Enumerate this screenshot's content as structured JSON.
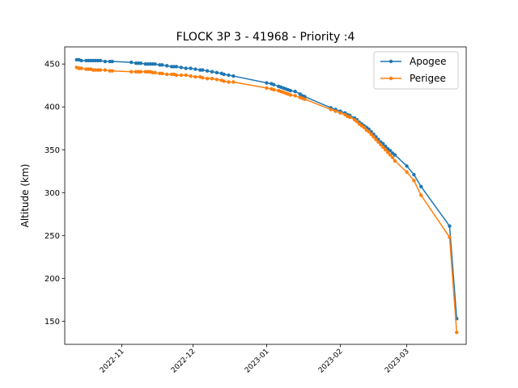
{
  "chart_data": {
    "type": "line",
    "title": "FLOCK 3P 3 - 41968 - Priority :4",
    "xlabel": "",
    "ylabel": "Altitude (km)",
    "x_type": "date",
    "xlim": [
      "2022-10-08",
      "2023-03-26"
    ],
    "ylim": [
      123,
      470
    ],
    "x_ticks": [
      "2022-11-01",
      "2022-12-01",
      "2023-01-01",
      "2023-02-01",
      "2023-03-01"
    ],
    "x_tick_labels": [
      "2022-11",
      "2022-12",
      "2023-01",
      "2023-02",
      "2023-03"
    ],
    "y_ticks": [
      150,
      200,
      250,
      300,
      350,
      400,
      450
    ],
    "y_tick_labels": [
      "150",
      "200",
      "250",
      "300",
      "350",
      "400",
      "450"
    ],
    "grid": false,
    "legend": "top-right",
    "series": [
      {
        "name": "Apogee",
        "color": "#1f77b4",
        "points": [
          [
            "2022-10-13",
            455
          ],
          [
            "2022-10-14",
            455
          ],
          [
            "2022-10-15",
            454
          ],
          [
            "2022-10-17",
            454
          ],
          [
            "2022-10-18",
            454
          ],
          [
            "2022-10-19",
            454
          ],
          [
            "2022-10-20",
            454
          ],
          [
            "2022-10-21",
            454
          ],
          [
            "2022-10-22",
            454
          ],
          [
            "2022-10-23",
            454
          ],
          [
            "2022-10-25",
            453
          ],
          [
            "2022-10-27",
            453
          ],
          [
            "2022-10-28",
            453
          ],
          [
            "2022-11-05",
            452
          ],
          [
            "2022-11-07",
            451
          ],
          [
            "2022-11-08",
            451
          ],
          [
            "2022-11-09",
            451
          ],
          [
            "2022-11-11",
            450
          ],
          [
            "2022-11-12",
            450
          ],
          [
            "2022-11-13",
            450
          ],
          [
            "2022-11-14",
            450
          ],
          [
            "2022-11-15",
            450
          ],
          [
            "2022-11-17",
            449
          ],
          [
            "2022-11-18",
            449
          ],
          [
            "2022-11-20",
            448
          ],
          [
            "2022-11-22",
            447
          ],
          [
            "2022-11-23",
            447
          ],
          [
            "2022-11-24",
            447
          ],
          [
            "2022-11-26",
            446
          ],
          [
            "2022-11-28",
            445
          ],
          [
            "2022-11-30",
            445
          ],
          [
            "2022-12-02",
            444
          ],
          [
            "2022-12-04",
            443
          ],
          [
            "2022-12-05",
            443
          ],
          [
            "2022-12-07",
            442
          ],
          [
            "2022-12-09",
            441
          ],
          [
            "2022-12-11",
            440
          ],
          [
            "2022-12-13",
            439
          ],
          [
            "2022-12-14",
            438
          ],
          [
            "2022-12-16",
            437
          ],
          [
            "2022-12-18",
            436
          ],
          [
            "2023-01-01",
            428
          ],
          [
            "2023-01-03",
            427
          ],
          [
            "2023-01-04",
            426
          ],
          [
            "2023-01-06",
            424
          ],
          [
            "2023-01-07",
            423
          ],
          [
            "2023-01-08",
            422
          ],
          [
            "2023-01-09",
            421
          ],
          [
            "2023-01-10",
            420
          ],
          [
            "2023-01-11",
            419
          ],
          [
            "2023-01-13",
            418
          ],
          [
            "2023-01-15",
            415
          ],
          [
            "2023-01-16",
            413
          ],
          [
            "2023-01-17",
            412
          ],
          [
            "2023-01-28",
            399
          ],
          [
            "2023-01-30",
            397
          ],
          [
            "2023-02-01",
            395
          ],
          [
            "2023-02-03",
            393
          ],
          [
            "2023-02-04",
            391
          ],
          [
            "2023-02-05",
            390
          ],
          [
            "2023-02-07",
            387
          ],
          [
            "2023-02-08",
            385
          ],
          [
            "2023-02-09",
            382
          ],
          [
            "2023-02-10",
            380
          ],
          [
            "2023-02-11",
            378
          ],
          [
            "2023-02-12",
            376
          ],
          [
            "2023-02-13",
            374
          ],
          [
            "2023-02-14",
            371
          ],
          [
            "2023-02-15",
            368
          ],
          [
            "2023-02-16",
            365
          ],
          [
            "2023-02-17",
            362
          ],
          [
            "2023-02-18",
            359
          ],
          [
            "2023-02-19",
            357
          ],
          [
            "2023-02-20",
            354
          ],
          [
            "2023-02-21",
            351
          ],
          [
            "2023-02-22",
            349
          ],
          [
            "2023-02-23",
            346
          ],
          [
            "2023-02-24",
            344
          ],
          [
            "2023-03-01",
            331
          ],
          [
            "2023-03-04",
            321
          ],
          [
            "2023-03-07",
            307
          ],
          [
            "2023-03-19",
            261
          ],
          [
            "2023-03-22",
            153
          ]
        ]
      },
      {
        "name": "Perigee",
        "color": "#ff7f0e",
        "points": [
          [
            "2022-10-13",
            446
          ],
          [
            "2022-10-14",
            445
          ],
          [
            "2022-10-15",
            445
          ],
          [
            "2022-10-17",
            444
          ],
          [
            "2022-10-18",
            444
          ],
          [
            "2022-10-19",
            444
          ],
          [
            "2022-10-20",
            443
          ],
          [
            "2022-10-21",
            443
          ],
          [
            "2022-10-22",
            443
          ],
          [
            "2022-10-23",
            443
          ],
          [
            "2022-10-25",
            443
          ],
          [
            "2022-10-27",
            442
          ],
          [
            "2022-10-28",
            442
          ],
          [
            "2022-11-05",
            441
          ],
          [
            "2022-11-07",
            441
          ],
          [
            "2022-11-08",
            441
          ],
          [
            "2022-11-09",
            441
          ],
          [
            "2022-11-11",
            441
          ],
          [
            "2022-11-12",
            441
          ],
          [
            "2022-11-13",
            441
          ],
          [
            "2022-11-14",
            440
          ],
          [
            "2022-11-15",
            440
          ],
          [
            "2022-11-17",
            439
          ],
          [
            "2022-11-18",
            439
          ],
          [
            "2022-11-20",
            438
          ],
          [
            "2022-11-22",
            438
          ],
          [
            "2022-11-23",
            438
          ],
          [
            "2022-11-24",
            437
          ],
          [
            "2022-11-26",
            437
          ],
          [
            "2022-11-28",
            437
          ],
          [
            "2022-11-30",
            436
          ],
          [
            "2022-12-02",
            435
          ],
          [
            "2022-12-04",
            435
          ],
          [
            "2022-12-05",
            434
          ],
          [
            "2022-12-07",
            433
          ],
          [
            "2022-12-09",
            433
          ],
          [
            "2022-12-11",
            432
          ],
          [
            "2022-12-13",
            431
          ],
          [
            "2022-12-14",
            430
          ],
          [
            "2022-12-16",
            429
          ],
          [
            "2022-12-18",
            429
          ],
          [
            "2023-01-01",
            422
          ],
          [
            "2023-01-03",
            421
          ],
          [
            "2023-01-04",
            420
          ],
          [
            "2023-01-06",
            419
          ],
          [
            "2023-01-07",
            418
          ],
          [
            "2023-01-08",
            417
          ],
          [
            "2023-01-09",
            416
          ],
          [
            "2023-01-10",
            415
          ],
          [
            "2023-01-11",
            414
          ],
          [
            "2023-01-13",
            413
          ],
          [
            "2023-01-15",
            411
          ],
          [
            "2023-01-16",
            410
          ],
          [
            "2023-01-17",
            409
          ],
          [
            "2023-01-28",
            397
          ],
          [
            "2023-01-30",
            395
          ],
          [
            "2023-02-01",
            393
          ],
          [
            "2023-02-03",
            391
          ],
          [
            "2023-02-04",
            389
          ],
          [
            "2023-02-05",
            388
          ],
          [
            "2023-02-07",
            385
          ],
          [
            "2023-02-08",
            383
          ],
          [
            "2023-02-09",
            380
          ],
          [
            "2023-02-10",
            378
          ],
          [
            "2023-02-11",
            376
          ],
          [
            "2023-02-12",
            373
          ],
          [
            "2023-02-13",
            371
          ],
          [
            "2023-02-14",
            368
          ],
          [
            "2023-02-15",
            365
          ],
          [
            "2023-02-16",
            362
          ],
          [
            "2023-02-17",
            359
          ],
          [
            "2023-02-18",
            356
          ],
          [
            "2023-02-19",
            353
          ],
          [
            "2023-02-20",
            350
          ],
          [
            "2023-02-21",
            347
          ],
          [
            "2023-02-22",
            344
          ],
          [
            "2023-02-23",
            341
          ],
          [
            "2023-02-24",
            337
          ],
          [
            "2023-03-01",
            324
          ],
          [
            "2023-03-04",
            314
          ],
          [
            "2023-03-07",
            297
          ],
          [
            "2023-03-19",
            248
          ],
          [
            "2023-03-22",
            137
          ]
        ]
      }
    ]
  }
}
